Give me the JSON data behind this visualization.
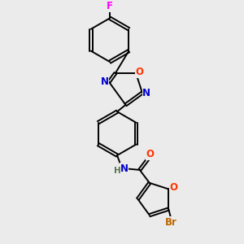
{
  "bg_color": "#ebebeb",
  "bond_color": "#000000",
  "bond_width": 1.4,
  "atom_colors": {
    "F": "#ff00ff",
    "N": "#0000cc",
    "O": "#ff3300",
    "Br": "#bb6600",
    "H": "#557755",
    "C": "#000000"
  },
  "font_size": 8.5
}
